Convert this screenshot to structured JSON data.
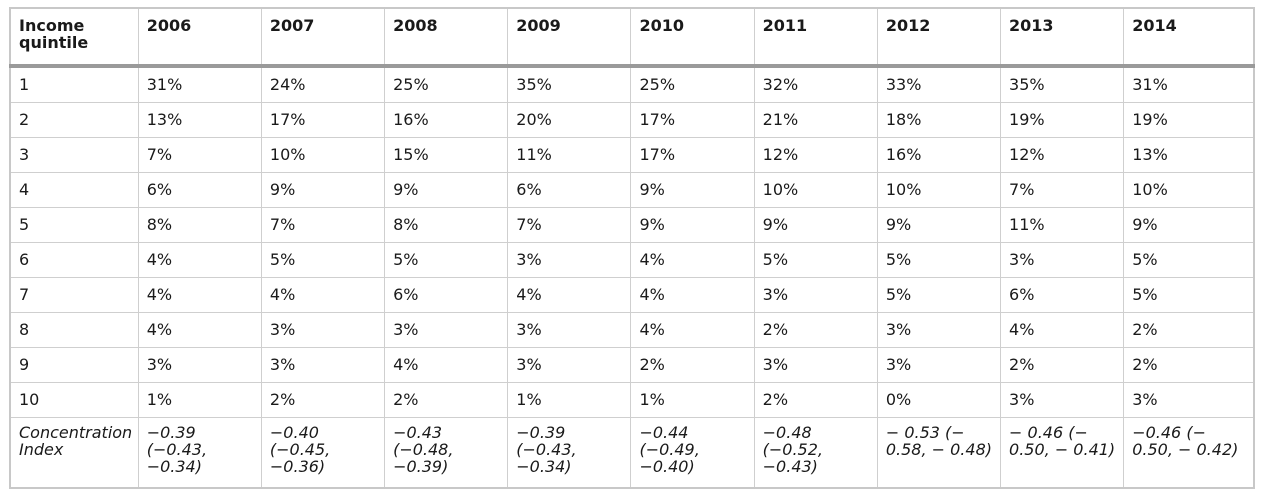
{
  "table": {
    "header_first": "Income quintile",
    "years": [
      "2006",
      "2007",
      "2008",
      "2009",
      "2010",
      "2011",
      "2012",
      "2013",
      "2014"
    ],
    "rows": [
      {
        "label": "1",
        "values": [
          "31%",
          "24%",
          "25%",
          "35%",
          "25%",
          "32%",
          "33%",
          "35%",
          "31%"
        ]
      },
      {
        "label": "2",
        "values": [
          "13%",
          "17%",
          "16%",
          "20%",
          "17%",
          "21%",
          "18%",
          "19%",
          "19%"
        ]
      },
      {
        "label": "3",
        "values": [
          "7%",
          "10%",
          "15%",
          "11%",
          "17%",
          "12%",
          "16%",
          "12%",
          "13%"
        ]
      },
      {
        "label": "4",
        "values": [
          "6%",
          "9%",
          "9%",
          "6%",
          "9%",
          "10%",
          "10%",
          "7%",
          "10%"
        ]
      },
      {
        "label": "5",
        "values": [
          "8%",
          "7%",
          "8%",
          "7%",
          "9%",
          "9%",
          "9%",
          "11%",
          "9%"
        ]
      },
      {
        "label": "6",
        "values": [
          "4%",
          "5%",
          "5%",
          "3%",
          "4%",
          "5%",
          "5%",
          "3%",
          "5%"
        ]
      },
      {
        "label": "7",
        "values": [
          "4%",
          "4%",
          "6%",
          "4%",
          "4%",
          "3%",
          "5%",
          "6%",
          "5%"
        ]
      },
      {
        "label": "8",
        "values": [
          "4%",
          "3%",
          "3%",
          "3%",
          "4%",
          "2%",
          "3%",
          "4%",
          "2%"
        ]
      },
      {
        "label": "9",
        "values": [
          "3%",
          "3%",
          "4%",
          "3%",
          "2%",
          "3%",
          "3%",
          "2%",
          "2%"
        ]
      },
      {
        "label": "10",
        "values": [
          "1%",
          "2%",
          "2%",
          "1%",
          "1%",
          "2%",
          "0%",
          "3%",
          "3%"
        ]
      }
    ],
    "concentration": {
      "label": "Concentration Index",
      "values": [
        "−0.39 (−0.43, −0.34)",
        "−0.40 (−0.45, −0.36)",
        "−0.43 (−0.48, −0.39)",
        "−0.39 (−0.43, −0.34)",
        "−0.44 (−0.49, −0.40)",
        "−0.48 (−0.52, −0.43)",
        "− 0.53 (− 0.58, − 0.48)",
        "− 0.46 (− 0.50, − 0.41)",
        "−0.46 (− 0.50, − 0.42)"
      ]
    }
  }
}
